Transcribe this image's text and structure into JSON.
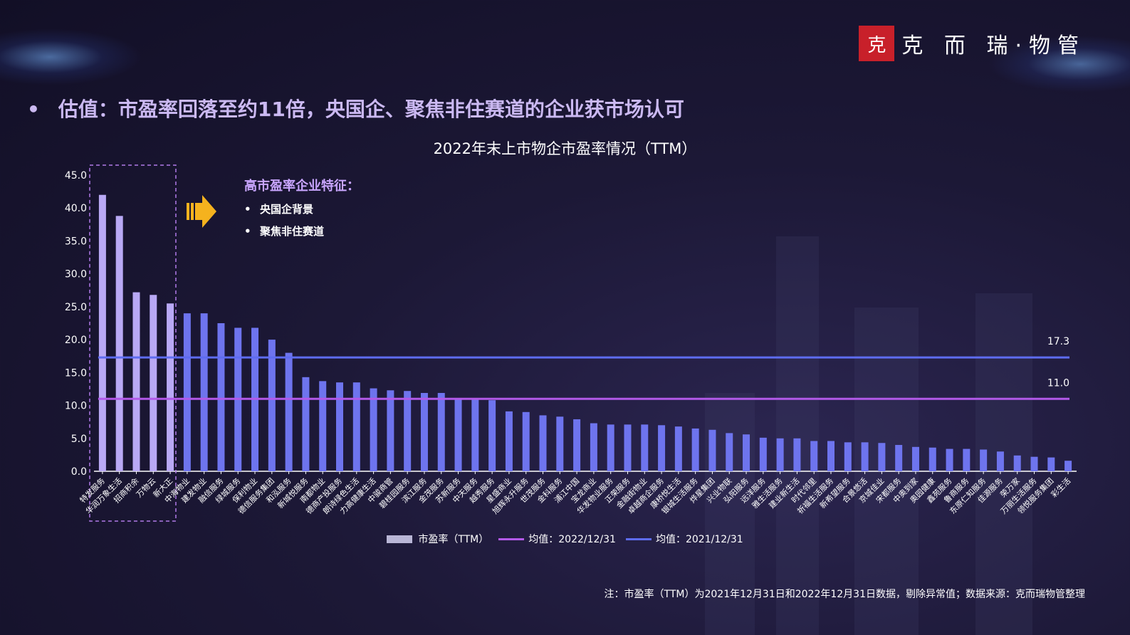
{
  "logo": {
    "seal": "克",
    "text": "克 而 瑞·物管"
  },
  "headline": "估值：市盈率回落至约11倍，央国企、聚焦非住赛道的企业获市场认可",
  "bullet": "•",
  "note": {
    "title": "高市盈率企业特征：",
    "items": [
      "央国企背景",
      "聚焦非住赛道"
    ]
  },
  "legend": {
    "bar": "市盈率（TTM）",
    "mean2022": "均值：2022/12/31",
    "mean2021": "均值：2021/12/31"
  },
  "footnote": "注：市盈率（TTM）为2021年12月31日和2022年12月31日数据，剔除异常值；数据来源：克而瑞物管整理",
  "colors": {
    "highlight_bar": "#b9a9f5",
    "bar": "#6e74ee",
    "mean2022": "#b259e8",
    "mean2021": "#5e6cf0"
  },
  "chart_data": {
    "type": "bar",
    "title": "2022年末上市物企市盈率情况（TTM）",
    "ylim": [
      0,
      45
    ],
    "yticks": [
      "0.0",
      "5.0",
      "10.0",
      "15.0",
      "20.0",
      "25.0",
      "30.0",
      "35.0",
      "40.0",
      "45.0"
    ],
    "highlight_count": 5,
    "categories": [
      "特发服务",
      "华润万象生活",
      "招商积余",
      "万物云",
      "新大正",
      "中海物业",
      "建发物业",
      "融信服务",
      "绿城服务",
      "保利物业",
      "德信服务集团",
      "和泓服务",
      "新城悦服务",
      "南都物业",
      "德商产投服务",
      "朗诗绿色生活",
      "力高健康生活",
      "中骏商管",
      "碧桂园服务",
      "滨江服务",
      "金茂服务",
      "苏新服务",
      "中天服务",
      "越秀服务",
      "星盛商业",
      "旭辉永升服务",
      "世茂服务",
      "金科服务",
      "浦江中国",
      "宝龙商业",
      "华发物业服务",
      "正荣服务",
      "金融街物业",
      "卓越商企服务",
      "康桥悦生活",
      "银城生活服务",
      "烨星集团",
      "兴业物联",
      "弘阳服务",
      "远洋服务",
      "雅生活服务",
      "建业新生活",
      "时代邻里",
      "祈福生活服务",
      "新希望服务",
      "合景悠活",
      "京城佳业",
      "宋都服务",
      "中奥到家",
      "奥园健康",
      "鑫苑服务",
      "鲁商服务",
      "东原仁知服务",
      "佳源服务",
      "荣万家",
      "万丽生活服务",
      "领悦服务集团",
      "彩生活"
    ],
    "values": [
      42.0,
      38.8,
      27.2,
      26.8,
      25.5,
      24.0,
      24.0,
      22.5,
      21.8,
      21.8,
      20.0,
      18.0,
      14.3,
      13.7,
      13.5,
      13.5,
      12.6,
      12.3,
      12.2,
      11.9,
      11.9,
      11.0,
      11.0,
      10.8,
      9.1,
      9.0,
      8.5,
      8.3,
      7.9,
      7.3,
      7.1,
      7.1,
      7.1,
      7.0,
      6.8,
      6.5,
      6.3,
      5.8,
      5.6,
      5.1,
      5.0,
      5.0,
      4.6,
      4.6,
      4.4,
      4.4,
      4.3,
      4.0,
      3.7,
      3.6,
      3.4,
      3.4,
      3.3,
      3.0,
      2.4,
      2.2,
      2.1,
      1.6
    ],
    "mean_2022": 11.0,
    "mean_2021": 17.3,
    "mean_2022_label": "11.0",
    "mean_2021_label": "17.3"
  }
}
